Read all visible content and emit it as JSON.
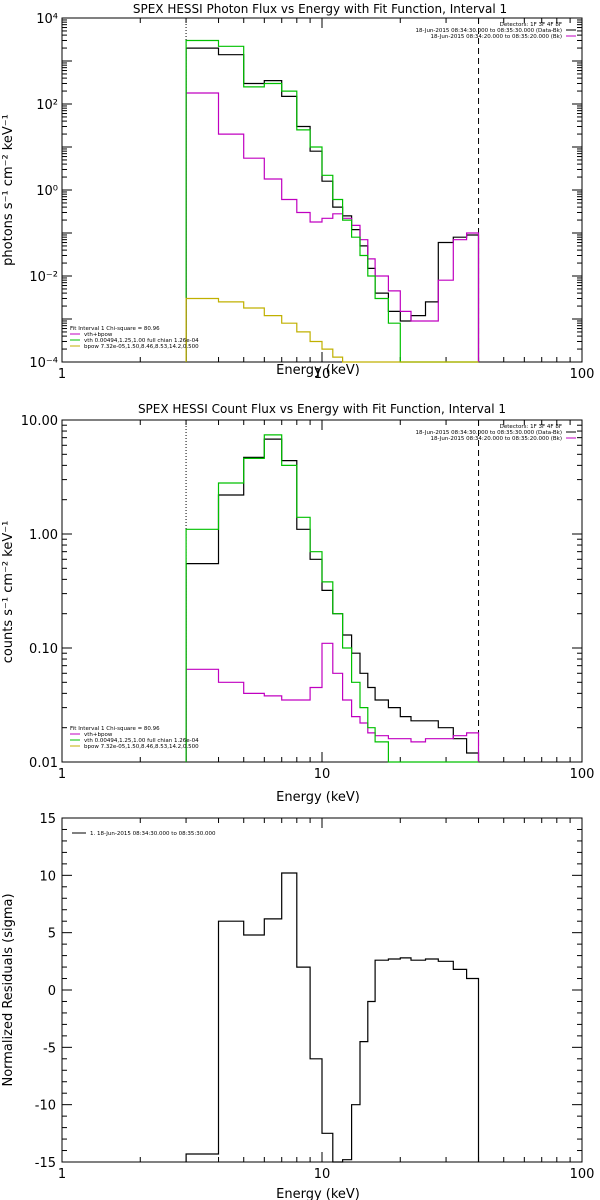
{
  "colors": {
    "data": "#000000",
    "total_model": "#c000c0",
    "vth": "#00c000",
    "bpow": "#c0b000"
  },
  "chart_data": [
    {
      "type": "line",
      "title": "SPEX HESSI Photon Flux vs Energy with Fit Function, Interval 1",
      "xlabel": "Energy (keV)",
      "ylabel": "photons s⁻¹ cm⁻² keV⁻¹",
      "xscale": "log",
      "yscale": "log",
      "xlim": [
        1,
        100
      ],
      "ylim": [
        0.0001,
        10000
      ],
      "x_tick_labels": [
        "1",
        "10",
        "100"
      ],
      "y_tick_labels": [
        "10⁻⁴",
        "10⁻²",
        "10⁰",
        "10²",
        "10⁴"
      ],
      "legend_top_right": [
        "Detectors: 1F 3F 4F 8F",
        "18-Jun-2015 08:34:30.000 to 08:35:30.000 (Data-Bk)",
        "18-Jun-2015 08:34:20.000 to 08:35:20.000 (Bk)"
      ],
      "legend_bottom_left": [
        "Fit Interval 1    Chi-square = 80.96",
        "vth+bpow",
        "vth 0.00494,1.25,1.00  full chian 1.26e-04",
        "bpow 7.32e-05,1.50,8.46,8.53,14.2,0.500"
      ],
      "vlines": [
        3,
        40
      ],
      "edges": [
        3,
        4,
        5,
        6,
        7,
        8,
        9,
        10,
        11,
        12,
        13,
        14,
        15,
        16,
        18,
        20,
        22,
        25,
        28,
        32,
        36,
        40
      ],
      "series": [
        {
          "name": "(Data-Bk)",
          "values": [
            2000,
            1400,
            300,
            350,
            150,
            30,
            8,
            1.6,
            0.4,
            0.25,
            0.12,
            0.05,
            0.015,
            0.004,
            0.0015,
            0.0009,
            0.0012,
            0.0025,
            0.06,
            0.08,
            0.09
          ]
        },
        {
          "name": "(Bk)",
          "values": [
            180,
            20,
            5.5,
            1.8,
            0.6,
            0.3,
            0.18,
            0.22,
            0.28,
            0.22,
            0.15,
            0.07,
            0.025,
            0.01,
            0.0045,
            0.0015,
            0.0009,
            0.0009,
            0.008,
            0.07,
            0.1
          ]
        },
        {
          "name": "vth+bpow",
          "values": [
            3000,
            2200,
            250,
            300,
            200,
            25,
            10,
            2.2,
            0.6,
            0.2,
            0.08,
            0.03,
            0.01,
            0.003,
            0.0008,
            0.0001,
            0.0001,
            0.0001,
            0.0001,
            0.0001,
            0.0001
          ]
        },
        {
          "name": "bpow",
          "values": [
            0.003,
            0.0025,
            0.0018,
            0.0012,
            0.0008,
            0.0005,
            0.0003,
            0.0002,
            0.00013,
            0.0001,
            0.0001,
            0.0001,
            0.0001,
            0.0001,
            0.0001,
            0.0001,
            0.0001,
            0.0001,
            0.0001,
            0.0001,
            0.0001
          ]
        }
      ]
    },
    {
      "type": "line",
      "title": "SPEX HESSI Count Flux vs Energy with Fit Function, Interval 1",
      "xlabel": "Energy (keV)",
      "ylabel": "counts s⁻¹ cm⁻² keV⁻¹",
      "xscale": "log",
      "yscale": "log",
      "xlim": [
        1,
        100
      ],
      "ylim": [
        0.01,
        10
      ],
      "x_tick_labels": [
        "1",
        "10",
        "100"
      ],
      "y_tick_labels": [
        "0.01",
        "0.10",
        "1.00",
        "10.00"
      ],
      "legend_top_right": [
        "Detectors: 1F 3F 4F 8F",
        "18-Jun-2015 08:34:30.000 to 08:35:30.000 (Data-Bk)",
        "18-Jun-2015 08:34:20.000 to 08:35:20.000 (Bk)"
      ],
      "legend_bottom_left": [
        "Fit Interval 1    Chi-square = 80.96",
        "vth+bpow",
        "vth 0.00494,1.25,1.00  full chian 1.26e-04",
        "bpow 7.32e-05,1.50,8.46,8.53,14.2,0.500"
      ],
      "vlines": [
        3,
        40
      ],
      "edges": [
        3,
        4,
        5,
        6,
        7,
        8,
        9,
        10,
        11,
        12,
        13,
        14,
        15,
        16,
        18,
        20,
        22,
        25,
        28,
        32,
        36,
        40
      ],
      "series": [
        {
          "name": "(Data-Bk)",
          "values": [
            0.55,
            2.2,
            4.7,
            6.8,
            4.4,
            1.1,
            0.6,
            0.32,
            0.2,
            0.13,
            0.09,
            0.06,
            0.045,
            0.035,
            0.03,
            0.025,
            0.023,
            0.023,
            0.02,
            0.016,
            0.012
          ]
        },
        {
          "name": "(Bk)",
          "values": [
            0.065,
            0.05,
            0.04,
            0.038,
            0.035,
            0.035,
            0.045,
            0.11,
            0.06,
            0.035,
            0.025,
            0.022,
            0.018,
            0.017,
            0.016,
            0.016,
            0.015,
            0.016,
            0.016,
            0.017,
            0.018
          ]
        },
        {
          "name": "vth+bpow",
          "values": [
            1.1,
            2.8,
            4.6,
            7.4,
            4.0,
            1.4,
            0.7,
            0.38,
            0.2,
            0.1,
            0.05,
            0.03,
            0.02,
            0.015,
            0.01,
            0.01,
            0.01,
            0.01,
            0.01,
            0.01,
            0.01
          ]
        }
      ]
    },
    {
      "type": "line",
      "title": "",
      "xlabel": "Energy (keV)",
      "ylabel": "Normalized Residuals (sigma)",
      "xscale": "log",
      "xlim": [
        1,
        100
      ],
      "ylim": [
        -15,
        15
      ],
      "x_tick_labels": [
        "1",
        "10",
        "100"
      ],
      "y_tick_labels": [
        "-15",
        "-10",
        "-5",
        "0",
        "5",
        "10",
        "15"
      ],
      "legend": [
        "1. 18-Jun-2015 08:34:30.000 to 08:35:30.000"
      ],
      "edges": [
        3,
        4,
        5,
        6,
        7,
        8,
        9,
        10,
        11,
        12,
        13,
        14,
        15,
        16,
        18,
        20,
        22,
        25,
        28,
        32,
        36,
        40
      ],
      "series": [
        {
          "name": "1. 18-Jun-2015 08:34:30.000 to 08:35:30.000",
          "values": [
            -14.3,
            6.0,
            4.8,
            6.2,
            10.2,
            2.0,
            -6.0,
            -12.5,
            -15.0,
            -14.8,
            -10.0,
            -4.5,
            -1.0,
            2.6,
            2.7,
            2.8,
            2.6,
            2.7,
            2.5,
            1.8,
            1.0
          ]
        }
      ]
    }
  ]
}
